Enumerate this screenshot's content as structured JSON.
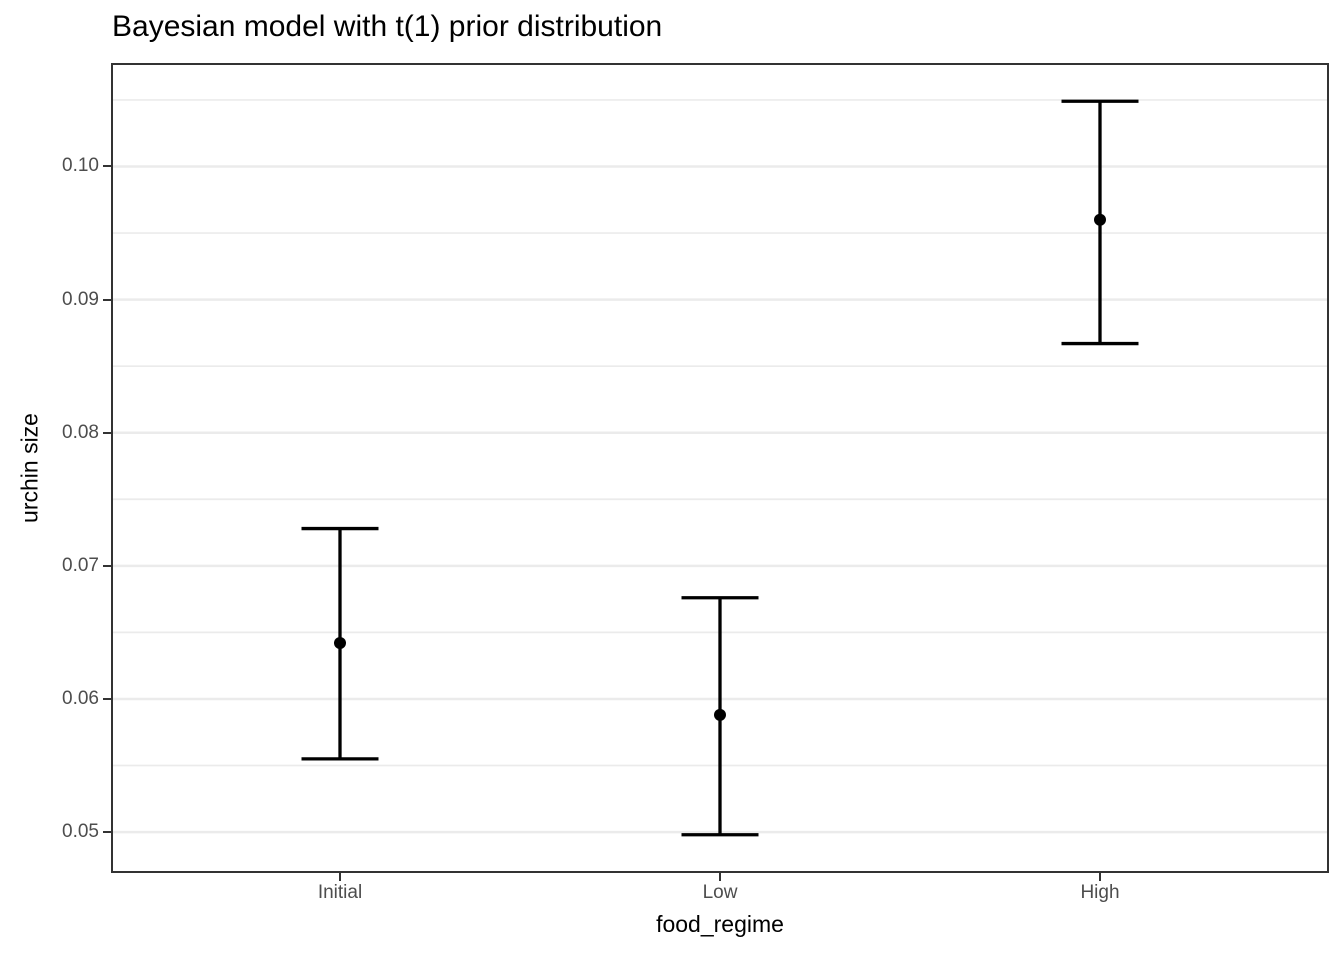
{
  "title": "Bayesian model with t(1) prior distribution",
  "chart_data": {
    "type": "scatter",
    "subtype": "point-with-error-bars",
    "title": "Bayesian model with t(1) prior distribution",
    "xlabel": "food_regime",
    "ylabel": "urchin size",
    "categories": [
      "Initial",
      "Low",
      "High"
    ],
    "points": [
      {
        "category": "Initial",
        "mean": 0.0642,
        "lower": 0.0555,
        "upper": 0.0728
      },
      {
        "category": "Low",
        "mean": 0.0588,
        "lower": 0.0498,
        "upper": 0.0676
      },
      {
        "category": "High",
        "mean": 0.096,
        "lower": 0.0867,
        "upper": 0.1049
      }
    ],
    "ylim": [
      0.047,
      0.1077
    ],
    "y_major_ticks": [
      0.05,
      0.06,
      0.07,
      0.08,
      0.09,
      0.1
    ],
    "y_tick_labels": [
      "0.05",
      "0.06",
      "0.07",
      "0.08",
      "0.09",
      "0.10"
    ],
    "y_minor_ticks": [
      0.055,
      0.065,
      0.075,
      0.085,
      0.095,
      0.105
    ],
    "grid": true,
    "legend": "none",
    "colors": {
      "point": "#000000",
      "error_bar": "#000000",
      "grid_major": "#ebebeb",
      "grid_minor": "#ebebeb",
      "panel_border": "#333333",
      "tick_mark": "#333333",
      "tick_label": "#4d4d4d",
      "axis_title": "#000000",
      "background": "#ffffff"
    }
  }
}
